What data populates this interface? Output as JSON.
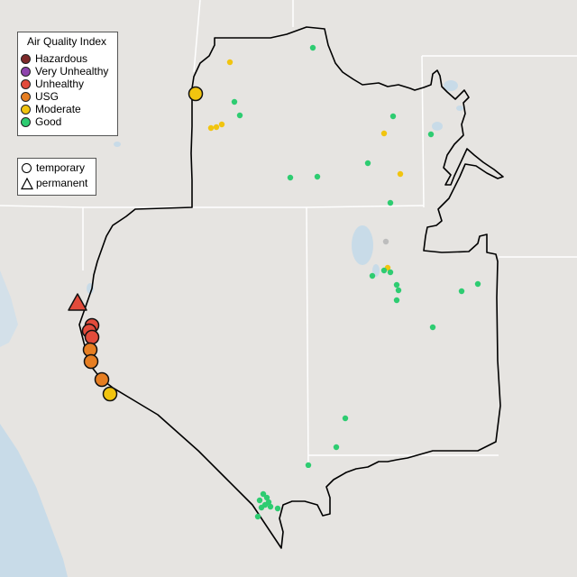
{
  "legend": {
    "title": "Air Quality Index",
    "categories": [
      {
        "label": "Hazardous",
        "color": "#7e2a2a"
      },
      {
        "label": "Very Unhealthy",
        "color": "#8e44ad"
      },
      {
        "label": "Unhealthy",
        "color": "#e24b3b"
      },
      {
        "label": "USG",
        "color": "#e67e22"
      },
      {
        "label": "Moderate",
        "color": "#f1c40f"
      },
      {
        "label": "Good",
        "color": "#2ecc71"
      }
    ]
  },
  "type_legend": {
    "temporary": "temporary",
    "permanent": "permanent"
  },
  "colors": {
    "background": "#e6e4e1",
    "water": "#c8dbe8",
    "state_border": "#ffffff",
    "region_outline": "#000000",
    "missing": "#bdbdbd"
  }
}
